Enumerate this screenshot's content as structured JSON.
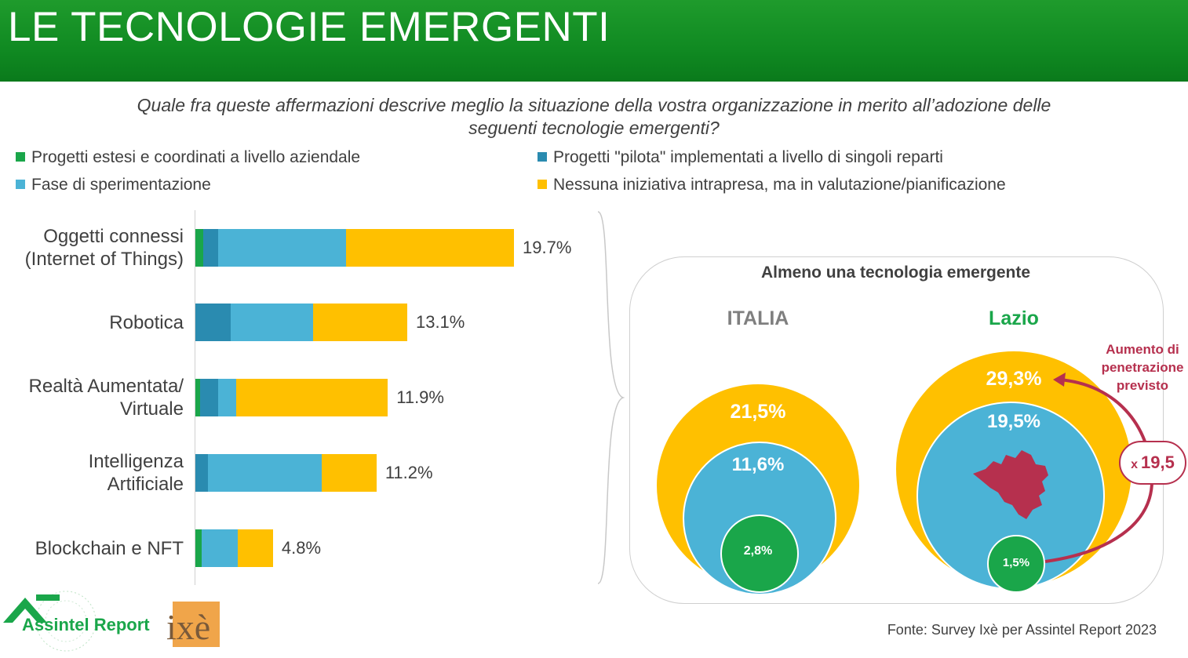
{
  "header": {
    "title": "LE TECNOLOGIE EMERGENTI"
  },
  "question": "Quale fra queste affermazioni descrive meglio la situazione della vostra organizzazione in merito all’adozione delle seguenti tecnologie emergenti?",
  "chart_data": [
    {
      "type": "bar",
      "orientation": "horizontal",
      "stacked": true,
      "categories": [
        "Oggetti connessi\n(Internet of Things)",
        "Robotica",
        "Realtà Aumentata/\nVirtuale",
        "Intelligenza\nArtificiale",
        "Blockchain e NFT"
      ],
      "totals": [
        "19.7%",
        "13.1%",
        "11.9%",
        "11.2%",
        "4.8%"
      ],
      "total_values": [
        19.7,
        13.1,
        11.9,
        11.2,
        4.8
      ],
      "series": [
        {
          "name": "Progetti estesi e coordinati a livello aziendale",
          "color": "#1aa64a",
          "values": [
            0.5,
            0.0,
            0.3,
            0.0,
            0.4
          ]
        },
        {
          "name": "Progetti \"pilota\" implementati a livello di singoli reparti",
          "color": "#2a8bb0",
          "values": [
            0.9,
            2.2,
            1.1,
            0.8,
            0.0
          ]
        },
        {
          "name": "Fase di sperimentazione",
          "color": "#4bb3d6",
          "values": [
            7.9,
            5.1,
            1.1,
            7.0,
            2.2
          ]
        },
        {
          "name": "Nessuna iniziativa intrapresa, ma in valutazione/pianificazione",
          "color": "#ffc000",
          "values": [
            10.4,
            5.8,
            9.4,
            3.4,
            2.2
          ]
        }
      ],
      "legend": "top"
    },
    {
      "type": "nested-circles",
      "title": "Almeno una tecnologia emergente",
      "groups": [
        {
          "name": "ITALIA",
          "values": [
            "21,5%",
            "11,6%",
            "2,8%"
          ],
          "numbers": [
            21.5,
            11.6,
            2.8
          ]
        },
        {
          "name": "Lazio",
          "values": [
            "29,3%",
            "19,5%",
            "1,5%"
          ],
          "numbers": [
            29.3,
            19.5,
            1.5
          ]
        }
      ],
      "annotation": "Aumento di penetrazione previsto",
      "multiplier_prefix": "x",
      "multiplier_value": "19,5"
    }
  ],
  "colors": {
    "yellow": "#ffc000",
    "lightblue": "#4bb3d6",
    "green": "#1aa64a",
    "darkblue": "#2a8bb0",
    "accent": "#b6304e",
    "header": "#138c24"
  },
  "icons": [
    "lazio-region-icon",
    "assintel-report-logo",
    "ixe-logo"
  ],
  "logos": {
    "assintel": "Assintel Report",
    "ixe": "ixè"
  },
  "source": "Fonte: Survey Ixè per Assintel Report 2023"
}
